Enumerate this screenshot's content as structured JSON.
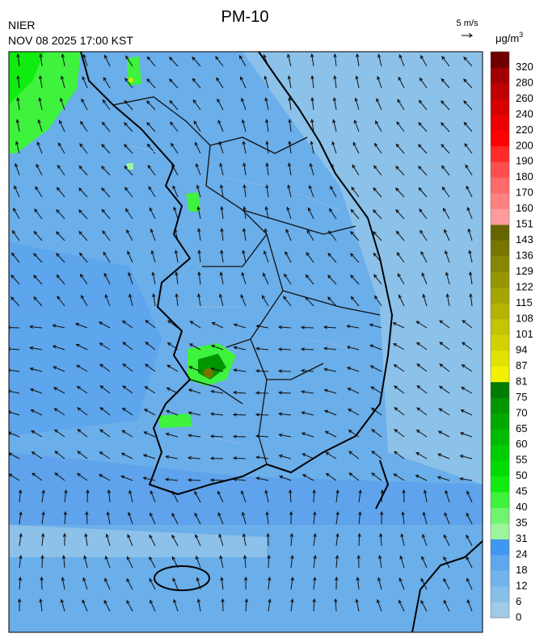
{
  "header": {
    "title": "PM-10",
    "agency": "NIER",
    "datetime": "NOV 08 2025 17:00 KST",
    "wind_scale": "5 m/s"
  },
  "legend": {
    "unit_base": "μg/m",
    "unit_exponent": "3",
    "levels": [
      {
        "value": 0,
        "color": "#9fcbe8"
      },
      {
        "value": 6,
        "color": "#87bfe9"
      },
      {
        "value": 12,
        "color": "#74b3ec"
      },
      {
        "value": 18,
        "color": "#5ea6ee"
      },
      {
        "value": 24,
        "color": "#3f97f2"
      },
      {
        "value": 31,
        "color": "#9cf59c"
      },
      {
        "value": 35,
        "color": "#6ef46e"
      },
      {
        "value": 40,
        "color": "#3ef23e"
      },
      {
        "value": 45,
        "color": "#10ec10"
      },
      {
        "value": 50,
        "color": "#00dc00"
      },
      {
        "value": 55,
        "color": "#00cc00"
      },
      {
        "value": 60,
        "color": "#00bb00"
      },
      {
        "value": 65,
        "color": "#00a900"
      },
      {
        "value": 70,
        "color": "#009600"
      },
      {
        "value": 75,
        "color": "#007a00"
      },
      {
        "value": 81,
        "color": "#f2f200"
      },
      {
        "value": 87,
        "color": "#e2e200"
      },
      {
        "value": 94,
        "color": "#d2d200"
      },
      {
        "value": 101,
        "color": "#c4c400"
      },
      {
        "value": 108,
        "color": "#b4b400"
      },
      {
        "value": 115,
        "color": "#a5a500"
      },
      {
        "value": 122,
        "color": "#959500"
      },
      {
        "value": 129,
        "color": "#868600"
      },
      {
        "value": 136,
        "color": "#777700"
      },
      {
        "value": 143,
        "color": "#666600"
      },
      {
        "value": 151,
        "color": "#ff9c9c"
      },
      {
        "value": 160,
        "color": "#ff8282"
      },
      {
        "value": 170,
        "color": "#ff6a6a"
      },
      {
        "value": 180,
        "color": "#ff4e4e"
      },
      {
        "value": 190,
        "color": "#ff2a2a"
      },
      {
        "value": 200,
        "color": "#ff0000"
      },
      {
        "value": 220,
        "color": "#ea0000"
      },
      {
        "value": 240,
        "color": "#d50000"
      },
      {
        "value": 260,
        "color": "#bf0000"
      },
      {
        "value": 280,
        "color": "#a00000"
      },
      {
        "value": 320,
        "color": "#700000"
      }
    ]
  }
}
